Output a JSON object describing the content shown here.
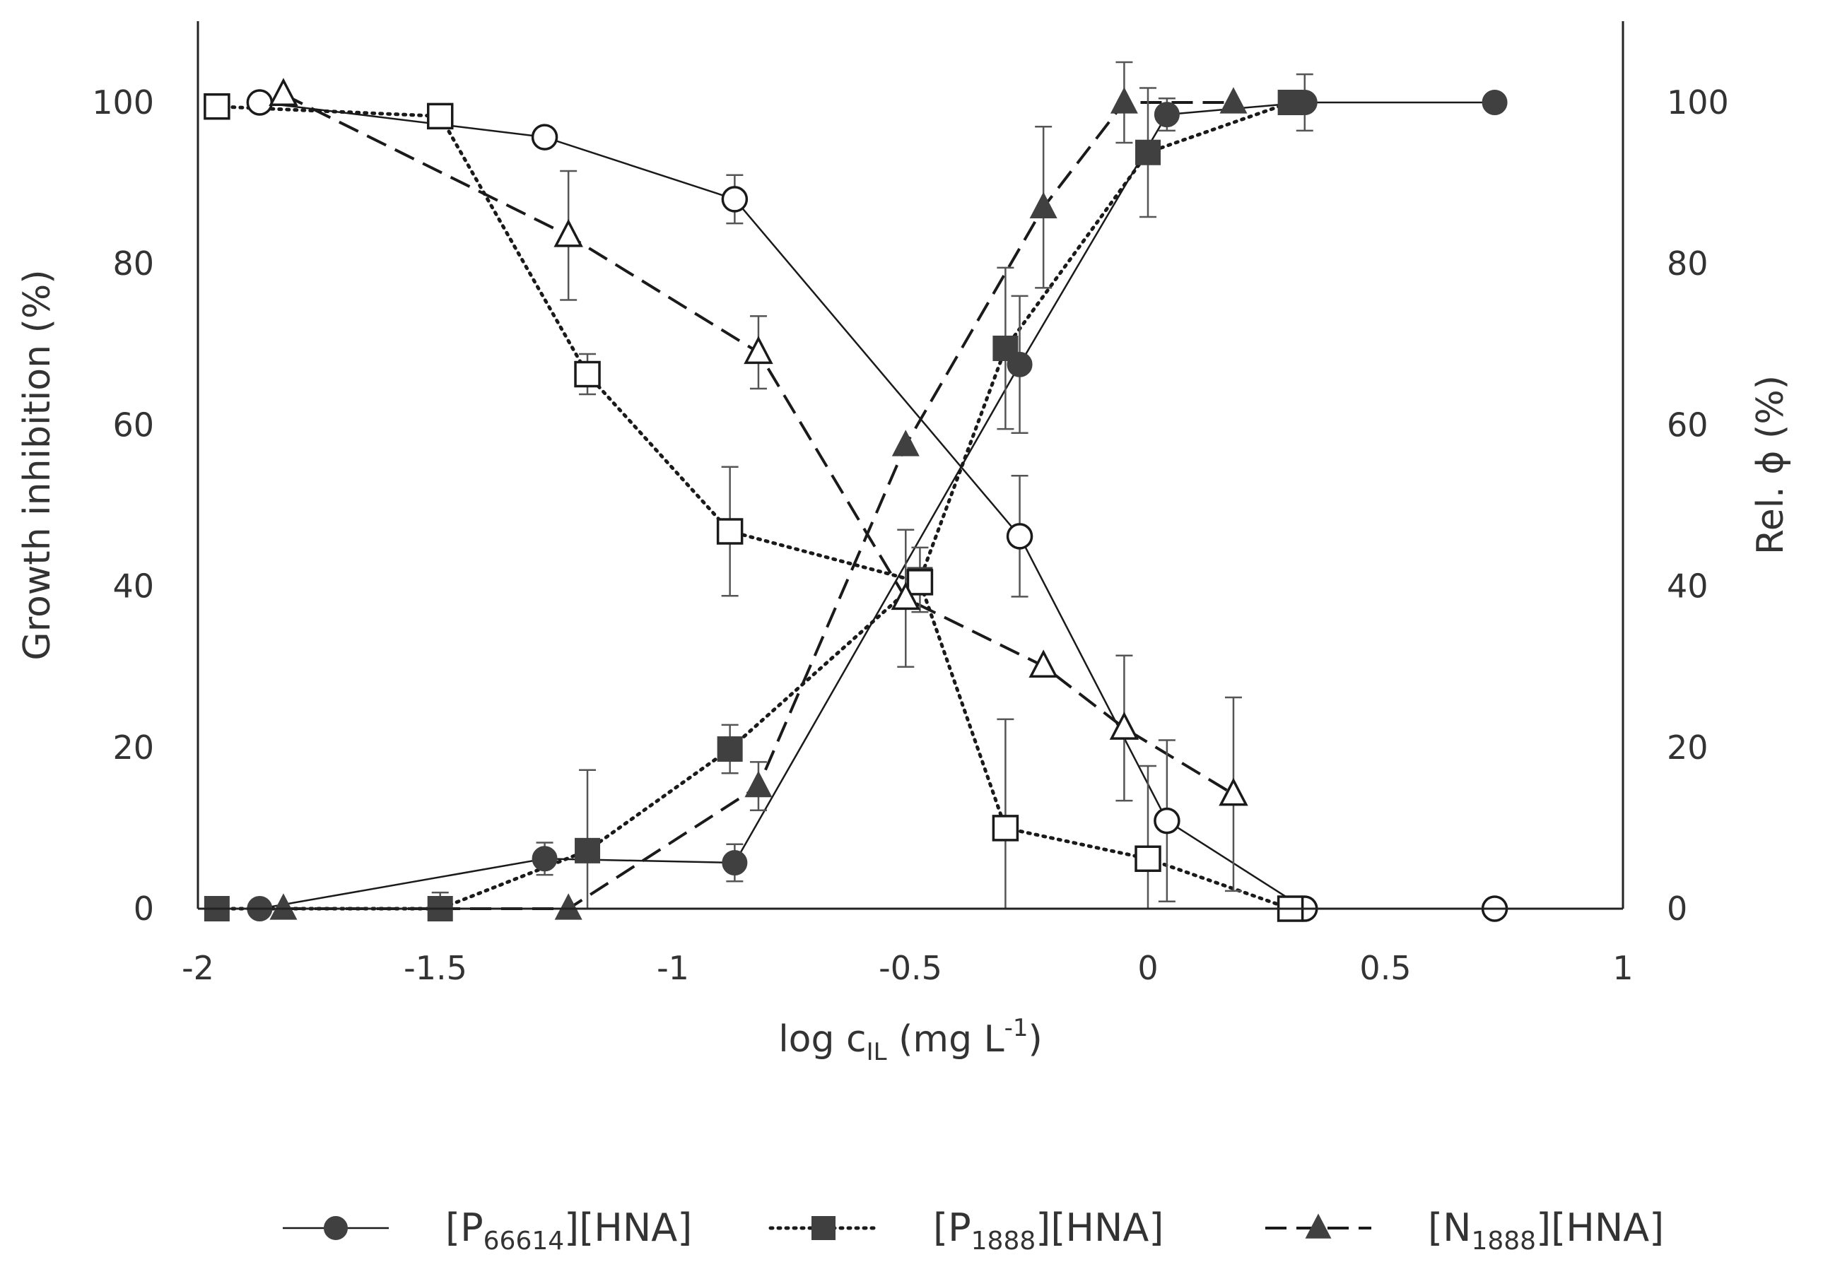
{
  "chart_data": {
    "type": "scatter",
    "title": "",
    "xlabel": {
      "main": "log c",
      "sub": "IL",
      "unit_pre": " (mg L",
      "unit_sup": "-1",
      "unit_post": ")"
    },
    "ylabel_left": "Growth inhibition (%)",
    "ylabel_right": "Rel. ϕ (%)",
    "xlim": [
      -2,
      1
    ],
    "ylim": [
      0,
      100
    ],
    "xticks": [
      "-2",
      "-1.5",
      "-1",
      "-0.5",
      "0",
      "0.5",
      "1"
    ],
    "xtick_values": [
      -2,
      -1.5,
      -1,
      -0.5,
      0,
      0.5,
      1
    ],
    "yticks": [
      "0",
      "20",
      "40",
      "60",
      "80",
      "100"
    ],
    "ytick_values": [
      0,
      20,
      40,
      60,
      80,
      100
    ],
    "grid": false,
    "legend_position": "bottom",
    "series": [
      {
        "name": {
          "pre": "[P",
          "sub": "66614",
          "post": "][HNA]"
        },
        "marker": "circle",
        "line": "solid",
        "filled": {
          "x": [
            -1.87,
            -1.27,
            -0.87,
            -0.27,
            0.04,
            0.33,
            0.73
          ],
          "y": [
            0,
            6.2,
            5.7,
            67.5,
            98.5,
            100,
            100
          ],
          "err": [
            0,
            2,
            2.3,
            8.5,
            2,
            3.5,
            0
          ]
        },
        "open": {
          "x": [
            -1.87,
            -1.27,
            -0.87,
            -0.27,
            0.04,
            0.33,
            0.73
          ],
          "y": [
            100,
            95.7,
            88,
            46.2,
            10.9,
            0,
            0
          ],
          "err": [
            0,
            0,
            3,
            7.5,
            10,
            0,
            0
          ]
        }
      },
      {
        "name": {
          "pre": "[P",
          "sub": "1888",
          "post": "][HNA]"
        },
        "marker": "square",
        "line": "dotted",
        "filled": {
          "x": [
            -1.96,
            -1.49,
            -1.18,
            -0.88,
            -0.48,
            -0.3,
            0,
            0.3
          ],
          "y": [
            0,
            0,
            7.2,
            19.8,
            40.8,
            69.5,
            93.8,
            100
          ],
          "err": [
            0,
            2,
            10,
            3,
            4,
            10,
            8,
            0
          ]
        },
        "open": {
          "x": [
            -1.96,
            -1.49,
            -1.18,
            -0.88,
            -0.48,
            -0.3,
            0,
            0.3
          ],
          "y": [
            99.5,
            98.3,
            66.3,
            46.8,
            40.5,
            10,
            6.2,
            0
          ],
          "err": [
            0,
            0,
            2.5,
            8,
            0,
            13.5,
            11.5,
            0
          ]
        }
      },
      {
        "name": {
          "pre": "[N",
          "sub": "1888",
          "post": "][HNA]"
        },
        "marker": "triangle",
        "line": "dashed",
        "filled": {
          "x": [
            -1.82,
            -1.22,
            -0.82,
            -0.51,
            -0.22,
            -0.05,
            0.18
          ],
          "y": [
            0,
            0,
            15.2,
            57.5,
            87,
            100,
            100
          ],
          "err": [
            0,
            0,
            3,
            0,
            10,
            5,
            0
          ]
        },
        "open": {
          "x": [
            -1.82,
            -1.22,
            -0.82,
            -0.51,
            -0.22,
            -0.05,
            0.18
          ],
          "y": [
            101,
            83.5,
            69,
            38.5,
            30.1,
            22.4,
            14.2
          ],
          "err": [
            0,
            8,
            4.5,
            8.5,
            0,
            9,
            12
          ]
        }
      }
    ]
  },
  "colors": {
    "axis": "#222222",
    "marker_fill": "#404040",
    "marker_stroke": "#1a1a1a",
    "line": "#1a1a1a",
    "errorbar": "#555555",
    "text": "#333333"
  }
}
